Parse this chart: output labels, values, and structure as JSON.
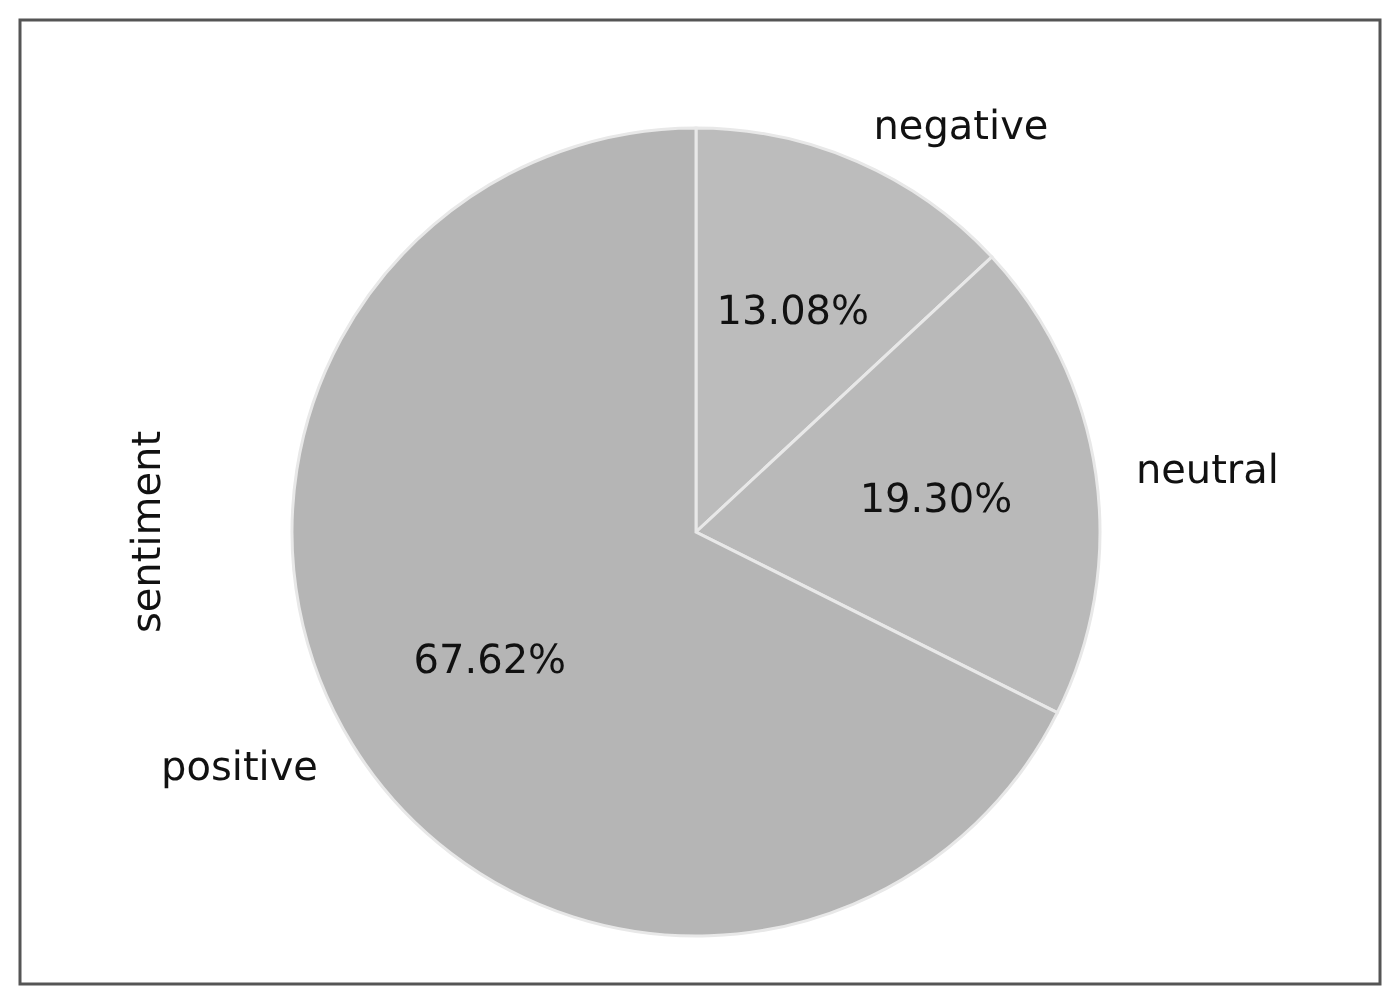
{
  "chart_data": {
    "type": "pie",
    "ylabel": "sentiment",
    "categories": [
      "negative",
      "neutral",
      "positive"
    ],
    "values": [
      13.08,
      19.3,
      67.62
    ],
    "value_labels": [
      "13.08%",
      "19.30%",
      "67.62%"
    ],
    "colors": [
      "#bcbcbc",
      "#b9b9b9",
      "#b5b5b5"
    ]
  }
}
